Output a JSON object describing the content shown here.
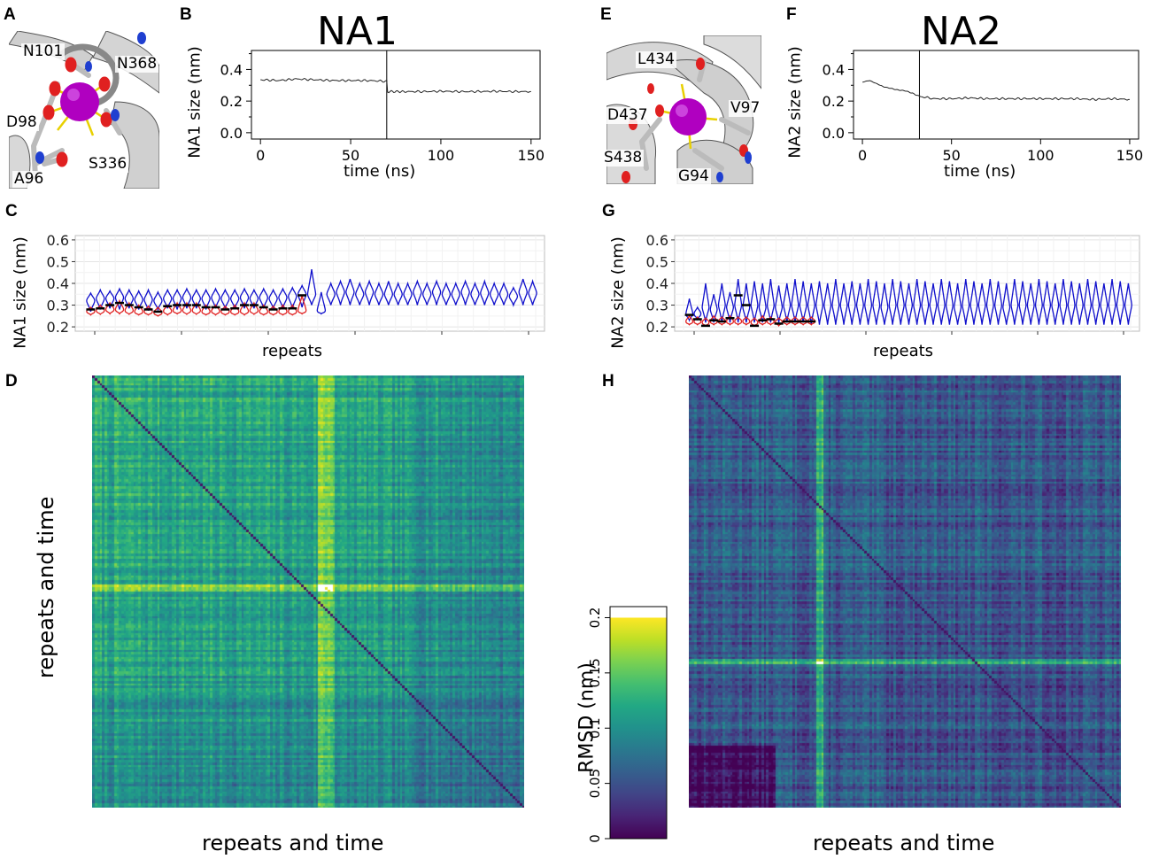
{
  "panels": {
    "A": {
      "letter": "A",
      "residues": [
        "N101",
        "N368",
        "D98",
        "S336",
        "A96"
      ]
    },
    "B": {
      "letter": "B",
      "title": "NA1"
    },
    "C": {
      "letter": "C"
    },
    "D": {
      "letter": "D"
    },
    "E": {
      "letter": "E",
      "residues": [
        "L434",
        "D437",
        "V97",
        "S438",
        "G94"
      ]
    },
    "F": {
      "letter": "F",
      "title": "NA2"
    },
    "G": {
      "letter": "G"
    },
    "H": {
      "letter": "H"
    }
  },
  "colors": {
    "ion": "#b000c0",
    "helix": "#c8c8c8",
    "oxygen": "#e02020",
    "nitrogen": "#1f3fd0",
    "bond": "#e8d000",
    "violin_blue": "#1010cc",
    "violin_red": "#e02020",
    "median": "#000000"
  },
  "chart_data": [
    {
      "id": "B",
      "type": "line",
      "xlabel": "time (ns)",
      "ylabel": "NA1 size (nm)",
      "xlim": [
        -5,
        155
      ],
      "ylim": [
        -0.04,
        0.52
      ],
      "xticks": [
        "0",
        "50",
        "100",
        "150"
      ],
      "xtick_values": [
        0,
        50,
        100,
        150
      ],
      "yticks": [
        "0.0",
        "0.2",
        "0.4"
      ],
      "ytick_values": [
        0.0,
        0.2,
        0.4
      ],
      "vline_x": 70,
      "series": [
        {
          "name": "NA1 size",
          "x": [
            0,
            10,
            20,
            30,
            40,
            50,
            60,
            70,
            70.5,
            80,
            90,
            100,
            110,
            120,
            130,
            140,
            150
          ],
          "y": [
            0.335,
            0.33,
            0.34,
            0.335,
            0.33,
            0.33,
            0.33,
            0.325,
            0.26,
            0.26,
            0.26,
            0.262,
            0.26,
            0.26,
            0.262,
            0.26,
            0.26
          ]
        }
      ]
    },
    {
      "id": "F",
      "type": "line",
      "xlabel": "time (ns)",
      "ylabel": "NA2 size (nm)",
      "xlim": [
        -5,
        155
      ],
      "ylim": [
        -0.04,
        0.52
      ],
      "xticks": [
        "0",
        "50",
        "100",
        "150"
      ],
      "xtick_values": [
        0,
        50,
        100,
        150
      ],
      "yticks": [
        "0.0",
        "0.2",
        "0.4"
      ],
      "ytick_values": [
        0.0,
        0.2,
        0.4
      ],
      "vline_x": 32,
      "series": [
        {
          "name": "NA2 size",
          "x": [
            0,
            4,
            8,
            12,
            16,
            20,
            24,
            28,
            32,
            40,
            50,
            60,
            70,
            80,
            90,
            100,
            110,
            120,
            130,
            140,
            150
          ],
          "y": [
            0.32,
            0.33,
            0.31,
            0.29,
            0.28,
            0.27,
            0.265,
            0.25,
            0.23,
            0.215,
            0.215,
            0.22,
            0.215,
            0.215,
            0.215,
            0.215,
            0.215,
            0.215,
            0.21,
            0.215,
            0.21
          ]
        }
      ]
    },
    {
      "id": "C",
      "type": "violin",
      "xlabel": "repeats",
      "ylabel": "NA1 size (nm)",
      "ylim": [
        0.18,
        0.62
      ],
      "yticks": [
        "0.2",
        "0.3",
        "0.4",
        "0.5",
        "0.6"
      ],
      "ytick_values": [
        0.2,
        0.3,
        0.4,
        0.5,
        0.6
      ],
      "red": [
        {
          "lo": 0.255,
          "hi": 0.29,
          "m": 0.272,
          "med": 0.28
        },
        {
          "lo": 0.258,
          "hi": 0.3,
          "m": 0.275,
          "med": 0.285
        },
        {
          "lo": 0.26,
          "hi": 0.31,
          "m": 0.28,
          "med": 0.3
        },
        {
          "lo": 0.26,
          "hi": 0.32,
          "m": 0.28,
          "med": 0.31
        },
        {
          "lo": 0.258,
          "hi": 0.31,
          "m": 0.275,
          "med": 0.3
        },
        {
          "lo": 0.255,
          "hi": 0.3,
          "m": 0.27,
          "med": 0.29
        },
        {
          "lo": 0.255,
          "hi": 0.295,
          "m": 0.27,
          "med": 0.28
        },
        {
          "lo": 0.25,
          "hi": 0.29,
          "m": 0.265,
          "med": 0.27
        },
        {
          "lo": 0.255,
          "hi": 0.3,
          "m": 0.272,
          "med": 0.295
        },
        {
          "lo": 0.26,
          "hi": 0.31,
          "m": 0.275,
          "med": 0.3
        },
        {
          "lo": 0.258,
          "hi": 0.31,
          "m": 0.275,
          "med": 0.3
        },
        {
          "lo": 0.258,
          "hi": 0.31,
          "m": 0.275,
          "med": 0.3
        },
        {
          "lo": 0.255,
          "hi": 0.3,
          "m": 0.27,
          "med": 0.29
        },
        {
          "lo": 0.255,
          "hi": 0.3,
          "m": 0.272,
          "med": 0.29
        },
        {
          "lo": 0.255,
          "hi": 0.295,
          "m": 0.27,
          "med": 0.28
        },
        {
          "lo": 0.255,
          "hi": 0.3,
          "m": 0.27,
          "med": 0.285
        },
        {
          "lo": 0.255,
          "hi": 0.31,
          "m": 0.272,
          "med": 0.3
        },
        {
          "lo": 0.258,
          "hi": 0.31,
          "m": 0.275,
          "med": 0.3
        },
        {
          "lo": 0.255,
          "hi": 0.3,
          "m": 0.27,
          "med": 0.29
        },
        {
          "lo": 0.255,
          "hi": 0.295,
          "m": 0.27,
          "med": 0.28
        },
        {
          "lo": 0.255,
          "hi": 0.3,
          "m": 0.27,
          "med": 0.285
        },
        {
          "lo": 0.255,
          "hi": 0.3,
          "m": 0.27,
          "med": 0.285
        },
        {
          "lo": 0.26,
          "hi": 0.345,
          "m": 0.275,
          "med": 0.345
        }
      ],
      "blue": [
        {
          "lo": 0.27,
          "hi": 0.355,
          "m": 0.32
        },
        {
          "lo": 0.28,
          "hi": 0.37,
          "m": 0.33
        },
        {
          "lo": 0.285,
          "hi": 0.365,
          "m": 0.33
        },
        {
          "lo": 0.28,
          "hi": 0.375,
          "m": 0.335
        },
        {
          "lo": 0.285,
          "hi": 0.37,
          "m": 0.33
        },
        {
          "lo": 0.28,
          "hi": 0.365,
          "m": 0.325
        },
        {
          "lo": 0.275,
          "hi": 0.37,
          "m": 0.325
        },
        {
          "lo": 0.28,
          "hi": 0.36,
          "m": 0.32
        },
        {
          "lo": 0.285,
          "hi": 0.37,
          "m": 0.33
        },
        {
          "lo": 0.28,
          "hi": 0.37,
          "m": 0.33
        },
        {
          "lo": 0.285,
          "hi": 0.375,
          "m": 0.335
        },
        {
          "lo": 0.285,
          "hi": 0.37,
          "m": 0.33
        },
        {
          "lo": 0.28,
          "hi": 0.37,
          "m": 0.33
        },
        {
          "lo": 0.285,
          "hi": 0.375,
          "m": 0.335
        },
        {
          "lo": 0.285,
          "hi": 0.37,
          "m": 0.33
        },
        {
          "lo": 0.285,
          "hi": 0.37,
          "m": 0.33
        },
        {
          "lo": 0.285,
          "hi": 0.375,
          "m": 0.335
        },
        {
          "lo": 0.285,
          "hi": 0.37,
          "m": 0.33
        },
        {
          "lo": 0.285,
          "hi": 0.375,
          "m": 0.335
        },
        {
          "lo": 0.285,
          "hi": 0.37,
          "m": 0.33
        },
        {
          "lo": 0.285,
          "hi": 0.375,
          "m": 0.335
        },
        {
          "lo": 0.285,
          "hi": 0.38,
          "m": 0.34
        },
        {
          "lo": 0.29,
          "hi": 0.39,
          "m": 0.35
        },
        {
          "lo": 0.3,
          "hi": 0.465,
          "m": 0.35
        },
        {
          "lo": 0.26,
          "hi": 0.36,
          "m": 0.275
        },
        {
          "lo": 0.3,
          "hi": 0.4,
          "m": 0.35
        },
        {
          "lo": 0.3,
          "hi": 0.41,
          "m": 0.36
        },
        {
          "lo": 0.3,
          "hi": 0.42,
          "m": 0.36
        },
        {
          "lo": 0.3,
          "hi": 0.4,
          "m": 0.35
        },
        {
          "lo": 0.3,
          "hi": 0.41,
          "m": 0.36
        },
        {
          "lo": 0.3,
          "hi": 0.4,
          "m": 0.35
        },
        {
          "lo": 0.3,
          "hi": 0.41,
          "m": 0.35
        },
        {
          "lo": 0.3,
          "hi": 0.4,
          "m": 0.35
        },
        {
          "lo": 0.3,
          "hi": 0.4,
          "m": 0.35
        },
        {
          "lo": 0.3,
          "hi": 0.41,
          "m": 0.36
        },
        {
          "lo": 0.3,
          "hi": 0.4,
          "m": 0.35
        },
        {
          "lo": 0.3,
          "hi": 0.41,
          "m": 0.36
        },
        {
          "lo": 0.3,
          "hi": 0.4,
          "m": 0.35
        },
        {
          "lo": 0.3,
          "hi": 0.4,
          "m": 0.35
        },
        {
          "lo": 0.3,
          "hi": 0.41,
          "m": 0.36
        },
        {
          "lo": 0.3,
          "hi": 0.4,
          "m": 0.35
        },
        {
          "lo": 0.3,
          "hi": 0.41,
          "m": 0.355
        },
        {
          "lo": 0.3,
          "hi": 0.4,
          "m": 0.35
        },
        {
          "lo": 0.3,
          "hi": 0.4,
          "m": 0.35
        },
        {
          "lo": 0.3,
          "hi": 0.38,
          "m": 0.34
        },
        {
          "lo": 0.3,
          "hi": 0.42,
          "m": 0.36
        },
        {
          "lo": 0.3,
          "hi": 0.41,
          "m": 0.355
        }
      ]
    },
    {
      "id": "G",
      "type": "violin",
      "xlabel": "repeats",
      "ylabel": "NA2 size (nm)",
      "ylim": [
        0.18,
        0.62
      ],
      "yticks": [
        "0.2",
        "0.3",
        "0.4",
        "0.5",
        "0.6"
      ],
      "ytick_values": [
        0.2,
        0.3,
        0.4,
        0.5,
        0.6
      ],
      "red": [
        {
          "lo": 0.21,
          "hi": 0.25,
          "m": 0.225,
          "med": 0.255
        },
        {
          "lo": 0.21,
          "hi": 0.245,
          "m": 0.225,
          "med": 0.235
        },
        {
          "lo": 0.205,
          "hi": 0.24,
          "m": 0.22,
          "med": 0.205
        },
        {
          "lo": 0.21,
          "hi": 0.25,
          "m": 0.225,
          "med": 0.23
        },
        {
          "lo": 0.21,
          "hi": 0.245,
          "m": 0.225,
          "med": 0.225
        },
        {
          "lo": 0.21,
          "hi": 0.25,
          "m": 0.225,
          "med": 0.24
        },
        {
          "lo": 0.21,
          "hi": 0.245,
          "m": 0.225,
          "med": 0.345
        },
        {
          "lo": 0.21,
          "hi": 0.245,
          "m": 0.225,
          "med": 0.3
        },
        {
          "lo": 0.205,
          "hi": 0.24,
          "m": 0.22,
          "med": 0.205
        },
        {
          "lo": 0.21,
          "hi": 0.25,
          "m": 0.225,
          "med": 0.23
        },
        {
          "lo": 0.21,
          "hi": 0.245,
          "m": 0.225,
          "med": 0.235
        },
        {
          "lo": 0.205,
          "hi": 0.24,
          "m": 0.222,
          "med": 0.215
        },
        {
          "lo": 0.21,
          "hi": 0.245,
          "m": 0.225,
          "med": 0.225
        },
        {
          "lo": 0.21,
          "hi": 0.245,
          "m": 0.225,
          "med": 0.225
        },
        {
          "lo": 0.21,
          "hi": 0.245,
          "m": 0.225,
          "med": 0.225
        },
        {
          "lo": 0.21,
          "hi": 0.245,
          "m": 0.225,
          "med": 0.225
        }
      ],
      "blue": [
        {
          "lo": 0.23,
          "hi": 0.33,
          "m": 0.26
        },
        {
          "lo": 0.235,
          "hi": 0.29,
          "m": 0.26
        },
        {
          "lo": 0.22,
          "hi": 0.4,
          "m": 0.29
        },
        {
          "lo": 0.22,
          "hi": 0.35,
          "m": 0.28
        },
        {
          "lo": 0.22,
          "hi": 0.4,
          "m": 0.3
        },
        {
          "lo": 0.22,
          "hi": 0.36,
          "m": 0.29
        },
        {
          "lo": 0.22,
          "hi": 0.42,
          "m": 0.3
        },
        {
          "lo": 0.22,
          "hi": 0.4,
          "m": 0.29
        },
        {
          "lo": 0.22,
          "hi": 0.41,
          "m": 0.3
        },
        {
          "lo": 0.22,
          "hi": 0.4,
          "m": 0.29
        },
        {
          "lo": 0.22,
          "hi": 0.42,
          "m": 0.3
        },
        {
          "lo": 0.22,
          "hi": 0.39,
          "m": 0.29
        },
        {
          "lo": 0.22,
          "hi": 0.4,
          "m": 0.3
        },
        {
          "lo": 0.22,
          "hi": 0.42,
          "m": 0.3
        },
        {
          "lo": 0.22,
          "hi": 0.41,
          "m": 0.3
        },
        {
          "lo": 0.21,
          "hi": 0.4,
          "m": 0.3
        },
        {
          "lo": 0.21,
          "hi": 0.41,
          "m": 0.3
        },
        {
          "lo": 0.21,
          "hi": 0.4,
          "m": 0.3
        },
        {
          "lo": 0.21,
          "hi": 0.42,
          "m": 0.3
        },
        {
          "lo": 0.21,
          "hi": 0.4,
          "m": 0.3
        },
        {
          "lo": 0.21,
          "hi": 0.41,
          "m": 0.3
        },
        {
          "lo": 0.21,
          "hi": 0.4,
          "m": 0.3
        },
        {
          "lo": 0.21,
          "hi": 0.42,
          "m": 0.3
        },
        {
          "lo": 0.21,
          "hi": 0.41,
          "m": 0.3
        },
        {
          "lo": 0.21,
          "hi": 0.4,
          "m": 0.29
        },
        {
          "lo": 0.21,
          "hi": 0.42,
          "m": 0.3
        },
        {
          "lo": 0.21,
          "hi": 0.41,
          "m": 0.3
        },
        {
          "lo": 0.21,
          "hi": 0.4,
          "m": 0.3
        },
        {
          "lo": 0.21,
          "hi": 0.42,
          "m": 0.3
        },
        {
          "lo": 0.21,
          "hi": 0.41,
          "m": 0.3
        },
        {
          "lo": 0.21,
          "hi": 0.4,
          "m": 0.3
        },
        {
          "lo": 0.21,
          "hi": 0.42,
          "m": 0.3
        },
        {
          "lo": 0.21,
          "hi": 0.41,
          "m": 0.3
        },
        {
          "lo": 0.21,
          "hi": 0.4,
          "m": 0.29
        },
        {
          "lo": 0.21,
          "hi": 0.42,
          "m": 0.3
        },
        {
          "lo": 0.21,
          "hi": 0.41,
          "m": 0.3
        },
        {
          "lo": 0.21,
          "hi": 0.4,
          "m": 0.3
        },
        {
          "lo": 0.21,
          "hi": 0.42,
          "m": 0.3
        },
        {
          "lo": 0.21,
          "hi": 0.41,
          "m": 0.3
        },
        {
          "lo": 0.21,
          "hi": 0.4,
          "m": 0.29
        },
        {
          "lo": 0.21,
          "hi": 0.42,
          "m": 0.3
        },
        {
          "lo": 0.21,
          "hi": 0.41,
          "m": 0.3
        },
        {
          "lo": 0.21,
          "hi": 0.4,
          "m": 0.3
        },
        {
          "lo": 0.21,
          "hi": 0.42,
          "m": 0.3
        },
        {
          "lo": 0.21,
          "hi": 0.41,
          "m": 0.3
        },
        {
          "lo": 0.21,
          "hi": 0.4,
          "m": 0.3
        },
        {
          "lo": 0.21,
          "hi": 0.42,
          "m": 0.3
        },
        {
          "lo": 0.21,
          "hi": 0.41,
          "m": 0.3
        },
        {
          "lo": 0.21,
          "hi": 0.4,
          "m": 0.3
        },
        {
          "lo": 0.21,
          "hi": 0.42,
          "m": 0.3
        },
        {
          "lo": 0.21,
          "hi": 0.41,
          "m": 0.3
        },
        {
          "lo": 0.21,
          "hi": 0.4,
          "m": 0.3
        },
        {
          "lo": 0.21,
          "hi": 0.42,
          "m": 0.3
        },
        {
          "lo": 0.21,
          "hi": 0.41,
          "m": 0.3
        },
        {
          "lo": 0.21,
          "hi": 0.4,
          "m": 0.3
        }
      ]
    },
    {
      "id": "D",
      "type": "heatmap",
      "xlabel": "repeats and time",
      "ylabel": "repeats and time",
      "colorscale": "viridis",
      "value_range": [
        0,
        0.2
      ],
      "n_cells": 180,
      "bright_bands": [
        0.52,
        0.54,
        0.56
      ],
      "dark_diagonal": true,
      "seed": 7
    },
    {
      "id": "H",
      "type": "heatmap",
      "xlabel": "repeats and time",
      "ylabel": "",
      "colorscale": "viridis",
      "value_range": [
        0,
        0.2
      ],
      "n_cells": 180,
      "bright_bands": [
        0.3,
        0.66
      ],
      "dark_diagonal": true,
      "seed": 13
    },
    {
      "id": "colorbar",
      "type": "colorbar",
      "label": "RMSD (nm)",
      "range": [
        0,
        0.21
      ],
      "ticks": [
        "0",
        "0.05",
        "0.1",
        "0.15",
        "0.2"
      ],
      "tick_values": [
        0,
        0.05,
        0.1,
        0.15,
        0.2
      ],
      "saturate_above": 0.2
    }
  ]
}
